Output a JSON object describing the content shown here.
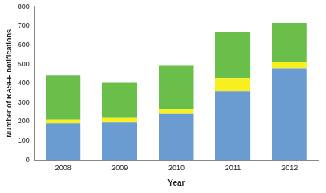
{
  "chart_data": {
    "type": "bar",
    "stacked": true,
    "grid": false,
    "x_label": "Year",
    "y_label": "Number of RASFF notifications",
    "categories": [
      "2008",
      "2009",
      "2010",
      "2011",
      "2012"
    ],
    "series": [
      {
        "color": "#6a9bd1",
        "values": [
          190,
          195,
          243,
          360,
          478
        ]
      },
      {
        "color": "#f7f01e",
        "values": [
          20,
          27,
          19,
          68,
          34
        ]
      },
      {
        "color": "#6abf4b",
        "values": [
          230,
          183,
          233,
          242,
          205
        ]
      }
    ],
    "ylim": [
      0,
      800
    ],
    "yticks": [
      0,
      100,
      200,
      300,
      400,
      500,
      600,
      700,
      800
    ]
  }
}
